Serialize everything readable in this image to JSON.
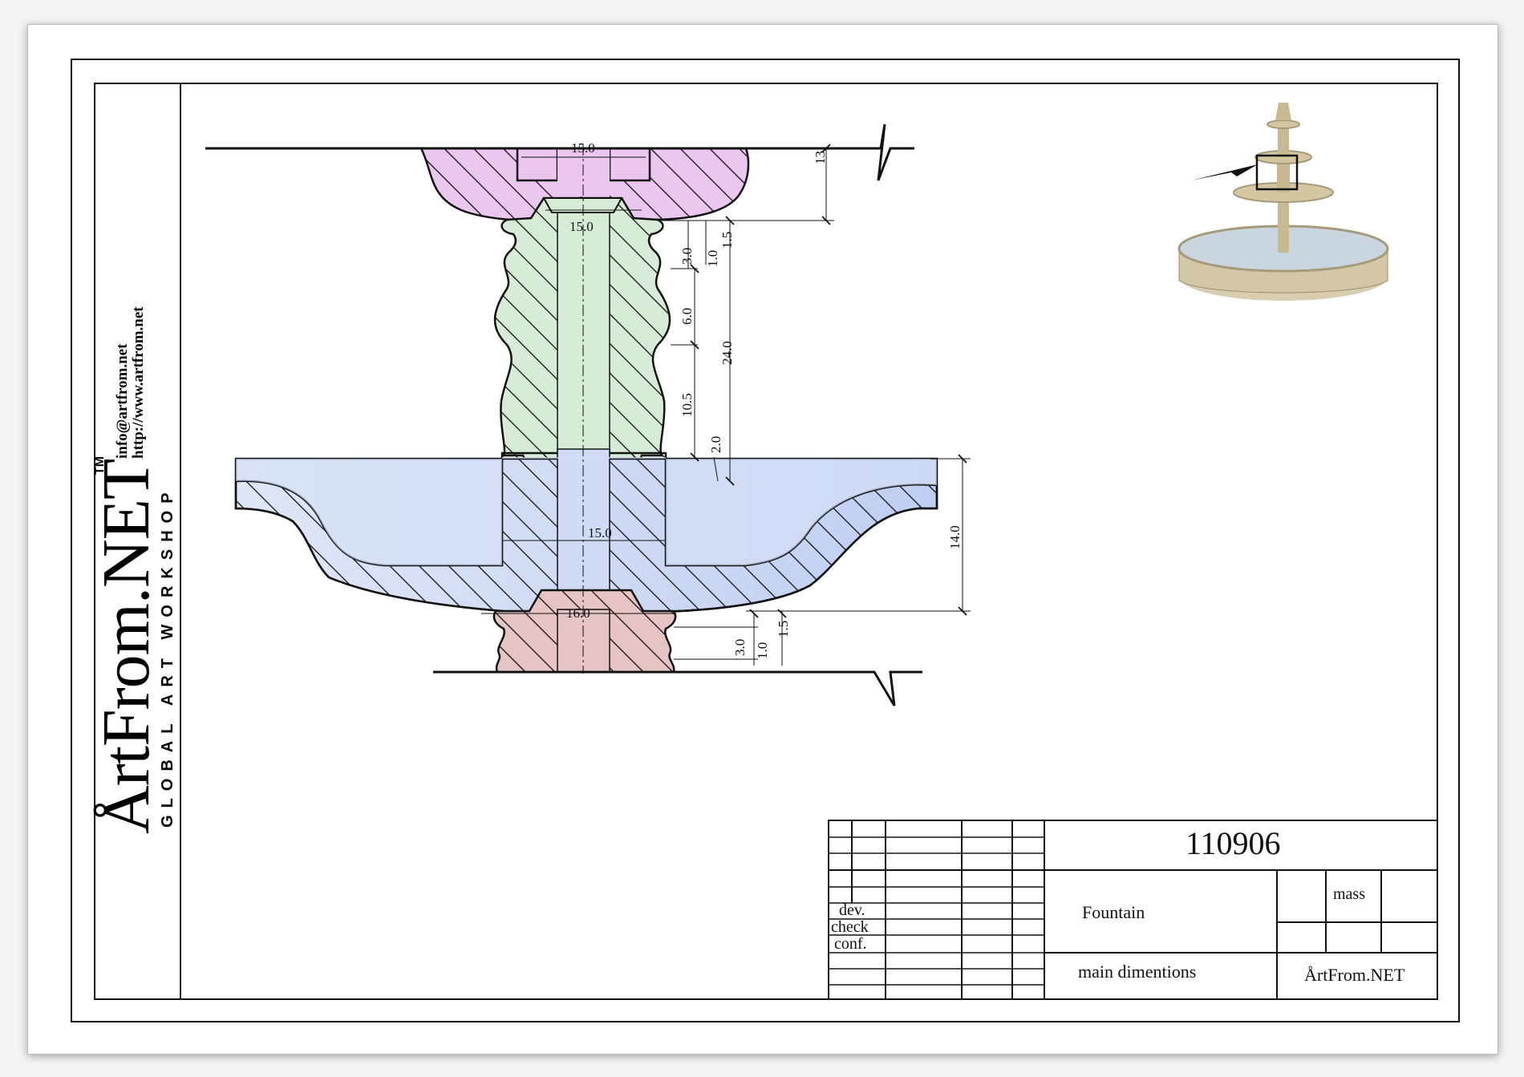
{
  "title_block": {
    "number": "110906",
    "name": "Fountain",
    "sheet_title": "main dimentions",
    "mass_label": "mass",
    "company": "ÅrtFrom.NET",
    "row_labels": [
      "dev.",
      "check",
      "conf."
    ]
  },
  "branding": {
    "logo": "ÅrtFrom.NET",
    "trademark": "TM",
    "tagline": "GLOBAL ART WORKSHOP",
    "email": "info@artfrom.net",
    "url": "http://www.artfrom.net"
  },
  "dimensions": {
    "top_width": "15.0",
    "top_height": "13",
    "stem_width": "15.0",
    "dim_3_0_a": "3.0",
    "dim_1_0_a": "1.0",
    "dim_1_5_a": "1.5",
    "dim_6_0": "6.0",
    "dim_24_0": "24.0",
    "dim_10_5": "10.5",
    "dim_2_0": "2.0",
    "bowl_hole_width": "15.0",
    "bowl_height": "14.0",
    "base_width": "16.0",
    "dim_3_0_b": "3.0",
    "dim_1_0_b": "1.0",
    "dim_1_5_b": "1.5"
  },
  "colors": {
    "top_section": "#ebc6ef",
    "stem_section": "#d6ecd6",
    "bowl_section": "#cfdbf5",
    "base_section": "#e6c4c4",
    "ink": "#111111"
  },
  "icons": [
    "fountain-thumbnail-icon",
    "break-line-icon",
    "callout-arrow-icon"
  ]
}
